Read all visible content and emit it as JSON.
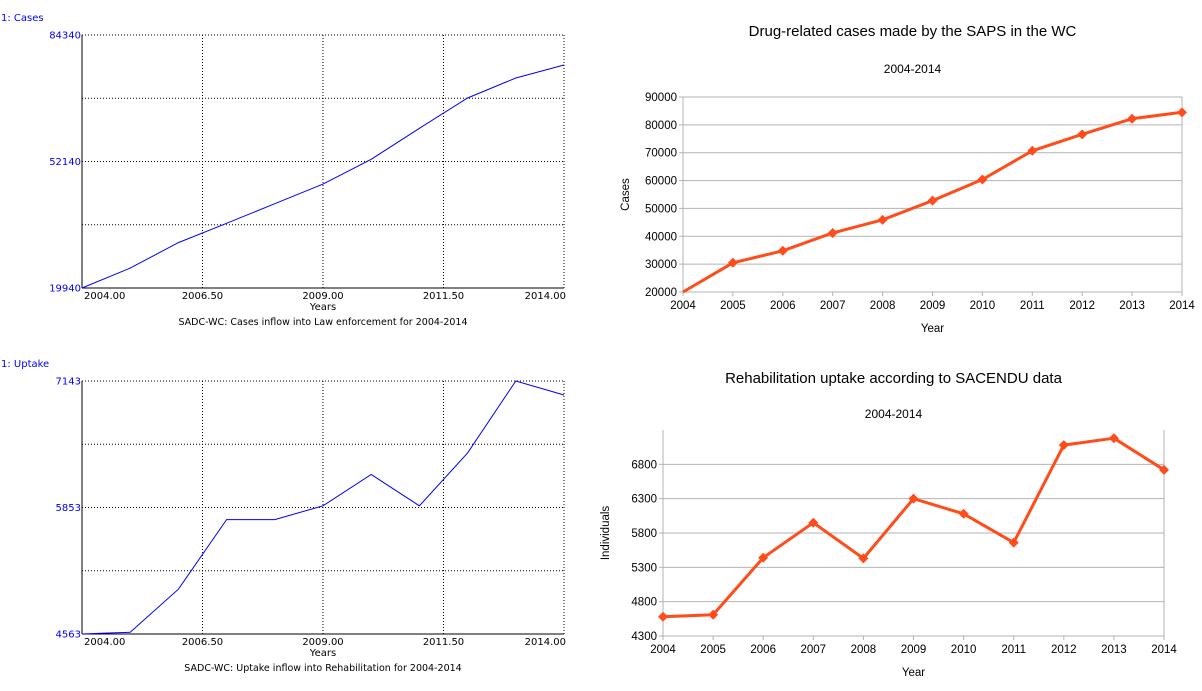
{
  "chart_data": [
    {
      "id": "sim-cases",
      "type": "line",
      "series_label": "1: Cases",
      "xlabel": "Years",
      "caption": "SADC-WC: Cases inflow into Law enforcement for 2004-2014",
      "xlim": [
        2004,
        2014
      ],
      "ylim": [
        19940,
        84340
      ],
      "x_tick_labels": [
        "2004.00",
        "2006.50",
        "2009.00",
        "2011.50",
        "2014.00"
      ],
      "y_tick_labels": [
        "19940",
        "52140",
        "84340"
      ],
      "line_color": "#0000ff",
      "series": [
        {
          "values": [
            [
              2004,
              19940
            ],
            [
              2005,
              25000
            ],
            [
              2006,
              31500
            ],
            [
              2007,
              36400
            ],
            [
              2008,
              41400
            ],
            [
              2009,
              46400
            ],
            [
              2010,
              52700
            ],
            [
              2011,
              60600
            ],
            [
              2012,
              68300
            ],
            [
              2013,
              73400
            ],
            [
              2014,
              76700
            ]
          ]
        }
      ]
    },
    {
      "id": "hist-cases",
      "type": "line",
      "title": "Drug-related cases made by the SAPS in the WC",
      "subtitle": "2004-2014",
      "xlabel": "Year",
      "ylabel": "Cases",
      "xlim": [
        2004,
        2014
      ],
      "ylim": [
        20000,
        90000
      ],
      "x_ticks": [
        2004,
        2005,
        2006,
        2007,
        2008,
        2009,
        2010,
        2011,
        2012,
        2013,
        2014
      ],
      "y_ticks": [
        20000,
        30000,
        40000,
        50000,
        60000,
        70000,
        80000,
        90000
      ],
      "line_color": "#ff4c1a",
      "grid": true,
      "series": [
        {
          "values": [
            [
              2004,
              20000
            ],
            [
              2005,
              30500
            ],
            [
              2006,
              34800
            ],
            [
              2007,
              41200
            ],
            [
              2008,
              45900
            ],
            [
              2009,
              52800
            ],
            [
              2010,
              60400
            ],
            [
              2011,
              70700
            ],
            [
              2012,
              76600
            ],
            [
              2013,
              82200
            ],
            [
              2014,
              84500
            ]
          ]
        }
      ]
    },
    {
      "id": "sim-uptake",
      "type": "line",
      "series_label": "1: Uptake",
      "xlabel": "Years",
      "caption": "SADC-WC: Uptake inflow into Rehabilitation for 2004-2014",
      "xlim": [
        2004,
        2014
      ],
      "ylim": [
        4563,
        7143
      ],
      "x_tick_labels": [
        "2004.00",
        "2006.50",
        "2009.00",
        "2011.50",
        "2014.00"
      ],
      "y_tick_labels": [
        "4563",
        "5853",
        "7143"
      ],
      "line_color": "#0000ff",
      "series": [
        {
          "values": [
            [
              2004,
              4563
            ],
            [
              2004.4,
              4570
            ],
            [
              2005,
              4580
            ],
            [
              2006,
              5020
            ],
            [
              2007,
              5730
            ],
            [
              2008,
              5730
            ],
            [
              2009,
              5870
            ],
            [
              2010,
              6190
            ],
            [
              2011,
              5870
            ],
            [
              2012,
              6410
            ],
            [
              2013,
              7143
            ],
            [
              2014,
              7000
            ]
          ]
        }
      ]
    },
    {
      "id": "hist-uptake",
      "type": "line",
      "title": "Rehabilitation uptake according to SACENDU data",
      "subtitle": "2004-2014",
      "xlabel": "Year",
      "ylabel": "Individuals",
      "xlim": [
        2004,
        2014
      ],
      "ylim": [
        4300,
        7300
      ],
      "x_ticks": [
        2004,
        2005,
        2006,
        2007,
        2008,
        2009,
        2010,
        2011,
        2012,
        2013,
        2014
      ],
      "y_ticks": [
        4300,
        4800,
        5300,
        5800,
        6300,
        6800
      ],
      "line_color": "#ff4c1a",
      "grid": true,
      "series": [
        {
          "values": [
            [
              2004,
              4580
            ],
            [
              2005,
              4610
            ],
            [
              2006,
              5440
            ],
            [
              2007,
              5950
            ],
            [
              2008,
              5430
            ],
            [
              2009,
              6300
            ],
            [
              2010,
              6080
            ],
            [
              2011,
              5660
            ],
            [
              2012,
              7080
            ],
            [
              2013,
              7180
            ],
            [
              2014,
              6720
            ]
          ]
        }
      ]
    }
  ]
}
